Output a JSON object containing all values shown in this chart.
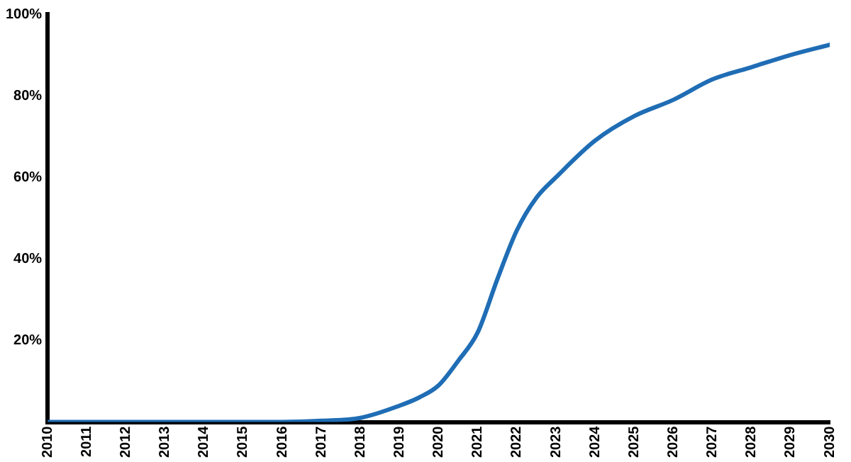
{
  "chart_data": {
    "type": "line",
    "x": [
      2010,
      2011,
      2012,
      2013,
      2014,
      2015,
      2016,
      2017,
      2018,
      2019,
      2019.5,
      2020,
      2020.5,
      2021,
      2021.5,
      2022,
      2022.5,
      2023,
      2024,
      2025,
      2026,
      2027,
      2028,
      2029,
      2030
    ],
    "series": [
      {
        "color": "#1f6db5",
        "values": [
          0,
          0,
          0,
          0,
          0,
          0,
          0,
          0.3,
          1,
          4,
          6,
          9,
          15,
          22,
          35,
          47,
          55,
          60,
          69,
          75,
          79,
          84,
          87,
          90,
          92.5
        ]
      }
    ],
    "xlim": [
      2010,
      2030
    ],
    "xticks": [
      2010,
      2011,
      2012,
      2013,
      2014,
      2015,
      2016,
      2017,
      2018,
      2019,
      2020,
      2021,
      2022,
      2023,
      2024,
      2025,
      2026,
      2027,
      2028,
      2029,
      2030
    ],
    "ylim": [
      0,
      100
    ],
    "yticks": [
      {
        "value": 0,
        "label": null
      },
      {
        "value": 20,
        "label": "20%"
      },
      {
        "value": 40,
        "label": "40%"
      },
      {
        "value": 60,
        "label": "60%"
      },
      {
        "value": 80,
        "label": "80%"
      },
      {
        "value": 100,
        "label": "100%"
      }
    ],
    "grid": false,
    "legend": false,
    "marker": "none",
    "line_style": "solid"
  }
}
